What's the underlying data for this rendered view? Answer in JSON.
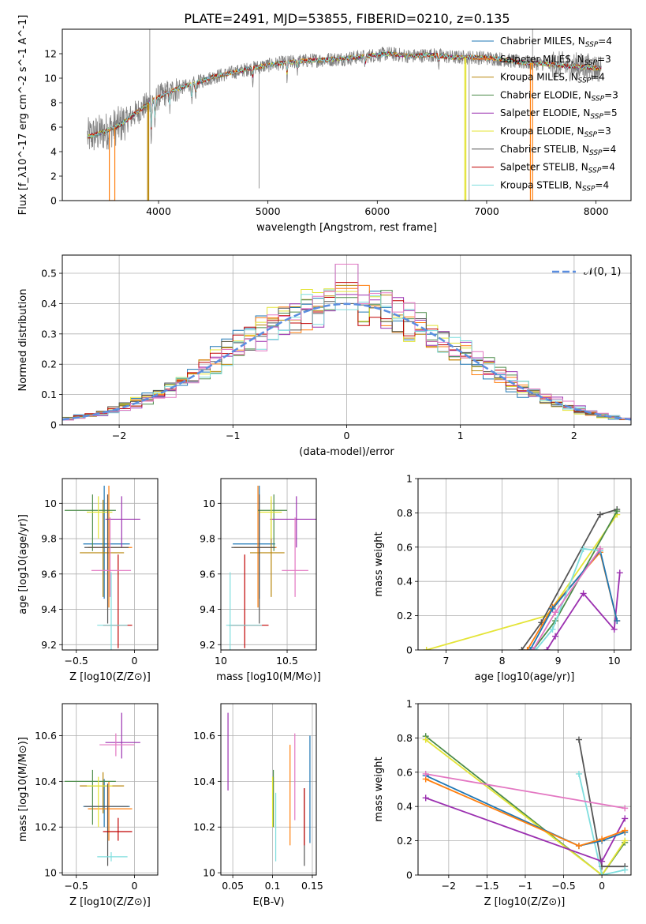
{
  "figure": {
    "title": "PLATE=2491, MJD=53855, FIBERID=0210, z=0.135"
  },
  "palette": {
    "Chabrier MILES": "#1f77b4",
    "Salpeter MILES": "#ff7f0e",
    "Kroupa MILES": "#b8860b",
    "Chabrier ELODIE": "#4c8c4a",
    "Salpeter ELODIE": "#9b30b0",
    "Kroupa ELODIE": "#e4e436",
    "Chabrier STELIB": "#555555",
    "Salpeter STELIB": "#c00000",
    "Kroupa STELIB": "#7fdede",
    "observed": "#808080",
    "normal_curve": "#5b8ee0"
  },
  "chart_data": [
    {
      "id": "spectrum",
      "type": "line",
      "title": "",
      "xlabel": "wavelength [Angstrom, rest frame]",
      "ylabel": "Flux [f_λ10^-17 erg cm^-2 s^-1 A^-1]",
      "xlim": [
        3120,
        8320
      ],
      "ylim": [
        0,
        14
      ],
      "xticks": [
        4000,
        5000,
        6000,
        7000,
        8000
      ],
      "yticks": [
        0,
        2,
        4,
        6,
        8,
        10,
        12
      ],
      "grid": false,
      "legend_position": "right",
      "legend": [
        {
          "model": "Chabrier MILES",
          "nssp": "4"
        },
        {
          "model": "Salpeter MILES",
          "nssp": "3"
        },
        {
          "model": "Kroupa MILES",
          "nssp": "4"
        },
        {
          "model": "Chabrier ELODIE",
          "nssp": "3"
        },
        {
          "model": "Salpeter ELODIE",
          "nssp": "5"
        },
        {
          "model": "Kroupa ELODIE",
          "nssp": "3"
        },
        {
          "model": "Chabrier STELIB",
          "nssp": "4"
        },
        {
          "model": "Salpeter STELIB",
          "nssp": "4"
        },
        {
          "model": "Kroupa STELIB",
          "nssp": "4"
        }
      ],
      "continuum": {
        "x": [
          3350,
          3500,
          3650,
          3800,
          3950,
          4100,
          4300,
          4500,
          4700,
          4900,
          5100,
          5300,
          5500,
          5700,
          5900,
          6100,
          6300,
          6500,
          6700,
          6900,
          7100,
          7300,
          7500,
          7700,
          7900,
          8050
        ],
        "y": [
          5.2,
          5.6,
          6.2,
          7.2,
          8.2,
          8.9,
          9.5,
          10.1,
          10.5,
          10.9,
          11.2,
          11.4,
          11.5,
          11.6,
          11.8,
          12.0,
          11.8,
          11.9,
          11.7,
          11.7,
          11.6,
          11.3,
          11.2,
          11.0,
          10.9,
          10.8
        ]
      },
      "dropouts": [
        {
          "model": "Salpeter MILES",
          "x": [
            3550,
            3600
          ]
        },
        {
          "model": "Kroupa MILES",
          "x": [
            3900,
            3910
          ]
        },
        {
          "model": "Kroupa ELODIE",
          "x": [
            6800,
            6810
          ]
        },
        {
          "model": "Salpeter MILES",
          "x": [
            7400,
            7420
          ]
        }
      ]
    },
    {
      "id": "residuals",
      "type": "area",
      "title": "",
      "xlabel": "(data-model)/error",
      "ylabel": "Normed distribution",
      "xlim": [
        -2.5,
        2.5
      ],
      "ylim": [
        0,
        0.56
      ],
      "xticks": [
        -2,
        -1,
        0,
        1,
        2
      ],
      "yticks": [
        0.0,
        0.1,
        0.2,
        0.3,
        0.4,
        0.5
      ],
      "grid": true,
      "legend_position": "top-right",
      "legend": [
        {
          "name": "𝒩(0, 1)"
        }
      ],
      "bin_width": 0.1,
      "peak_bins": [
        0.53,
        0.45,
        0.46,
        0.42,
        0.43,
        0.44,
        0.4,
        0.47,
        0.38
      ]
    },
    {
      "id": "z_vs_age",
      "type": "scatter",
      "xlabel": "Z [log10(Z/Z⊙)]",
      "ylabel": "age [log10(age/yr)]",
      "xlim": [
        -0.62,
        0.2
      ],
      "ylim": [
        9.17,
        10.14
      ],
      "xticks": [
        -0.5,
        0.0
      ],
      "yticks": [
        9.2,
        9.4,
        9.6,
        9.8,
        10.0
      ],
      "grid": true,
      "points": [
        {
          "model": "Chabrier MILES",
          "x": -0.26,
          "xerr": [
            0.18,
            0.22
          ],
          "y": 9.77,
          "yerr": [
            0.31,
            0.33
          ]
        },
        {
          "model": "Salpeter MILES",
          "x": -0.22,
          "xerr": [
            0.18,
            0.2
          ],
          "y": 9.75,
          "yerr": [
            0.34,
            0.35
          ]
        },
        {
          "model": "Kroupa MILES",
          "x": -0.27,
          "xerr": [
            0.2,
            0.18
          ],
          "y": 9.72,
          "yerr": [
            0.25,
            0.3
          ]
        },
        {
          "model": "Chabrier ELODIE",
          "x": -0.36,
          "xerr": [
            0.24,
            0.2
          ],
          "y": 9.96,
          "yerr": [
            0.23,
            0.09
          ]
        },
        {
          "model": "Salpeter ELODIE",
          "x": -0.11,
          "xerr": [
            0.14,
            0.16
          ],
          "y": 9.91,
          "yerr": [
            0.16,
            0.13
          ]
        },
        {
          "model": "Kroupa ELODIE",
          "x": -0.31,
          "xerr": [
            0.1,
            0.12
          ],
          "y": 9.95,
          "yerr": [
            0.15,
            0.09
          ]
        },
        {
          "model": "Chabrier STELIB",
          "x": -0.23,
          "xerr": [
            0.2,
            0.18
          ],
          "y": 9.75,
          "yerr": [
            0.43,
            0.3
          ]
        },
        {
          "model": "Salpeter STELIB",
          "x": -0.14,
          "xerr": [
            0.13,
            0.12
          ],
          "y": 9.31,
          "yerr": [
            0.13,
            0.4
          ]
        },
        {
          "model": "Kroupa STELIB",
          "x": -0.2,
          "xerr": [
            0.12,
            0.14
          ],
          "y": 9.31,
          "yerr": [
            0.14,
            0.3
          ]
        },
        {
          "model": "extra-pink",
          "x": -0.21,
          "xerr": [
            0.16,
            0.18
          ],
          "y": 9.62,
          "yerr": [
            0.15,
            0.3
          ]
        }
      ]
    },
    {
      "id": "mass_vs_age",
      "type": "scatter",
      "xlabel": "mass [log10(M/M⊙)]",
      "ylabel": "",
      "xlim": [
        10.0,
        10.72
      ],
      "ylim": [
        9.17,
        10.14
      ],
      "xticks": [
        10.0,
        10.5
      ],
      "yticks": [
        9.2,
        9.4,
        9.6,
        9.8,
        10.0
      ],
      "grid": true,
      "points": [
        {
          "model": "Chabrier MILES",
          "x": 10.29,
          "xerr": [
            0.2,
            0.12
          ],
          "y": 9.77,
          "yerr": [
            0.31,
            0.33
          ]
        },
        {
          "model": "Salpeter MILES",
          "x": 10.28,
          "xerr": [
            0.18,
            0.14
          ],
          "y": 9.75,
          "yerr": [
            0.34,
            0.35
          ]
        },
        {
          "model": "Kroupa MILES",
          "x": 10.38,
          "xerr": [
            0.16,
            0.1
          ],
          "y": 9.72,
          "yerr": [
            0.25,
            0.3
          ]
        },
        {
          "model": "Chabrier ELODIE",
          "x": 10.4,
          "xerr": [
            0.12,
            0.1
          ],
          "y": 9.96,
          "yerr": [
            0.23,
            0.09
          ]
        },
        {
          "model": "Salpeter ELODIE",
          "x": 10.57,
          "xerr": [
            0.2,
            0.2
          ],
          "y": 9.91,
          "yerr": [
            0.16,
            0.13
          ]
        },
        {
          "model": "Kroupa ELODIE",
          "x": 10.38,
          "xerr": [
            0.1,
            0.08
          ],
          "y": 9.95,
          "yerr": [
            0.15,
            0.09
          ]
        },
        {
          "model": "Chabrier STELIB",
          "x": 10.29,
          "xerr": [
            0.21,
            0.12
          ],
          "y": 9.75,
          "yerr": [
            0.43,
            0.3
          ]
        },
        {
          "model": "Salpeter STELIB",
          "x": 10.18,
          "xerr": [
            0.12,
            0.18
          ],
          "y": 9.31,
          "yerr": [
            0.13,
            0.4
          ]
        },
        {
          "model": "Kroupa STELIB",
          "x": 10.07,
          "xerr": [
            0.03,
            0.24
          ],
          "y": 9.31,
          "yerr": [
            0.14,
            0.3
          ]
        },
        {
          "model": "extra-pink",
          "x": 10.56,
          "xerr": [
            0.1,
            0.1
          ],
          "y": 9.62,
          "yerr": [
            0.15,
            0.3
          ]
        }
      ]
    },
    {
      "id": "age_weights",
      "type": "line",
      "xlabel": "age [log10(age/yr)]",
      "ylabel": "mass weight",
      "xlim": [
        6.5,
        10.3
      ],
      "ylim": [
        0,
        1.0
      ],
      "xticks": [
        7,
        8,
        9,
        10
      ],
      "yticks": [
        0.0,
        0.2,
        0.4,
        0.6,
        0.8,
        1.0
      ],
      "grid": true,
      "series": [
        {
          "model": "Kroupa ELODIE",
          "x": [
            6.65,
            8.8,
            10.05
          ],
          "y": [
            0.0,
            0.2,
            0.79
          ]
        },
        {
          "model": "Chabrier STELIB",
          "x": [
            8.35,
            8.7,
            9.75,
            10.05
          ],
          "y": [
            0.0,
            0.16,
            0.79,
            0.82
          ]
        },
        {
          "model": "Chabrier ELODIE",
          "x": [
            8.55,
            8.95,
            10.05
          ],
          "y": [
            0.0,
            0.17,
            0.81
          ]
        },
        {
          "model": "Salpeter ELODIE",
          "x": [
            8.8,
            8.95,
            9.45,
            10.0,
            10.1
          ],
          "y": [
            0.0,
            0.08,
            0.33,
            0.12,
            0.45
          ]
        },
        {
          "model": "Salpeter MILES",
          "x": [
            8.45,
            8.9,
            9.75,
            10.05
          ],
          "y": [
            0.0,
            0.25,
            0.57,
            0.17
          ]
        },
        {
          "model": "Chabrier MILES",
          "x": [
            8.5,
            8.9,
            9.75,
            10.05
          ],
          "y": [
            0.0,
            0.24,
            0.58,
            0.17
          ]
        },
        {
          "model": "Kroupa STELIB",
          "x": [
            8.6,
            8.9,
            9.45,
            9.75
          ],
          "y": [
            0.0,
            0.12,
            0.59,
            0.58
          ]
        },
        {
          "model": "extra-pink",
          "x": [
            8.55,
            8.95,
            9.75
          ],
          "y": [
            0.0,
            0.22,
            0.59
          ]
        }
      ]
    },
    {
      "id": "z_vs_mass",
      "type": "scatter",
      "xlabel": "Z [log10(Z/Z⊙)]",
      "ylabel": "mass [log10(M/M⊙)]",
      "xlim": [
        -0.62,
        0.2
      ],
      "ylim": [
        9.99,
        10.74
      ],
      "xticks": [
        -0.5,
        0.0
      ],
      "yticks": [
        10.0,
        10.2,
        10.4,
        10.6
      ],
      "grid": true,
      "points": [
        {
          "model": "Chabrier MILES",
          "x": -0.26,
          "xerr": [
            0.18,
            0.22
          ],
          "y": 10.29,
          "yerr": [
            0.09,
            0.12
          ]
        },
        {
          "model": "Salpeter MILES",
          "x": -0.22,
          "xerr": [
            0.18,
            0.2
          ],
          "y": 10.28,
          "yerr": [
            0.14,
            0.12
          ]
        },
        {
          "model": "Kroupa MILES",
          "x": -0.27,
          "xerr": [
            0.2,
            0.18
          ],
          "y": 10.38,
          "yerr": [
            0.12,
            0.06
          ]
        },
        {
          "model": "Chabrier ELODIE",
          "x": -0.36,
          "xerr": [
            0.24,
            0.2
          ],
          "y": 10.4,
          "yerr": [
            0.19,
            0.05
          ]
        },
        {
          "model": "Salpeter ELODIE",
          "x": -0.11,
          "xerr": [
            0.14,
            0.16
          ],
          "y": 10.57,
          "yerr": [
            0.07,
            0.13
          ]
        },
        {
          "model": "Kroupa ELODIE",
          "x": -0.31,
          "xerr": [
            0.1,
            0.12
          ],
          "y": 10.38,
          "yerr": [
            0.18,
            0.04
          ]
        },
        {
          "model": "Chabrier STELIB",
          "x": -0.23,
          "xerr": [
            0.2,
            0.18
          ],
          "y": 10.29,
          "yerr": [
            0.26,
            0.1
          ]
        },
        {
          "model": "Salpeter STELIB",
          "x": -0.14,
          "xerr": [
            0.13,
            0.12
          ],
          "y": 10.18,
          "yerr": [
            0.04,
            0.06
          ]
        },
        {
          "model": "Kroupa STELIB",
          "x": -0.2,
          "xerr": [
            0.12,
            0.14
          ],
          "y": 10.07,
          "yerr": [
            0.02,
            0.02
          ]
        },
        {
          "model": "extra-pink",
          "x": -0.16,
          "xerr": [
            0.14,
            0.16
          ],
          "y": 10.56,
          "yerr": [
            0.05,
            0.05
          ]
        }
      ]
    },
    {
      "id": "ebv_vs_mass",
      "type": "scatter",
      "xlabel": "E(B-V)",
      "ylabel": "",
      "xlim": [
        0.035,
        0.155
      ],
      "ylim": [
        9.99,
        10.74
      ],
      "xticks": [
        0.05,
        0.1,
        0.15
      ],
      "yticks": [
        10.0,
        10.2,
        10.4,
        10.6
      ],
      "grid": true,
      "points": [
        {
          "model": "Chabrier MILES",
          "x": 0.147,
          "xerr": [
            0,
            0
          ],
          "y": 10.37,
          "yerr": [
            0.24,
            0.23
          ]
        },
        {
          "model": "Salpeter MILES",
          "x": 0.122,
          "xerr": [
            0,
            0
          ],
          "y": 10.34,
          "yerr": [
            0.22,
            0.22
          ]
        },
        {
          "model": "Kroupa MILES",
          "x": 0.101,
          "xerr": [
            0,
            0
          ],
          "y": 10.3,
          "yerr": [
            0.1,
            0.12
          ]
        },
        {
          "model": "Chabrier ELODIE",
          "x": 0.101,
          "xerr": [
            0,
            0
          ],
          "y": 10.34,
          "yerr": [
            0.14,
            0.11
          ]
        },
        {
          "model": "Salpeter ELODIE",
          "x": 0.044,
          "xerr": [
            0,
            0
          ],
          "y": 10.53,
          "yerr": [
            0.17,
            0.17
          ]
        },
        {
          "model": "Kroupa ELODIE",
          "x": 0.1,
          "xerr": [
            0,
            0
          ],
          "y": 10.3,
          "yerr": [
            0.1,
            0.12
          ]
        },
        {
          "model": "Chabrier STELIB",
          "x": 0.14,
          "xerr": [
            0,
            0
          ],
          "y": 10.2,
          "yerr": [
            0.17,
            0.17
          ]
        },
        {
          "model": "Salpeter STELIB",
          "x": 0.14,
          "xerr": [
            0,
            0
          ],
          "y": 10.25,
          "yerr": [
            0.13,
            0.12
          ]
        },
        {
          "model": "Kroupa STELIB",
          "x": 0.104,
          "xerr": [
            0,
            0
          ],
          "y": 10.2,
          "yerr": [
            0.15,
            0.15
          ]
        },
        {
          "model": "extra-pink",
          "x": 0.128,
          "xerr": [
            0,
            0
          ],
          "y": 10.43,
          "yerr": [
            0.2,
            0.18
          ]
        }
      ]
    },
    {
      "id": "z_weights",
      "type": "line",
      "xlabel": "Z [log10(Z/Z⊙)]",
      "ylabel": "mass weight",
      "xlim": [
        -2.4,
        0.38
      ],
      "ylim": [
        0,
        1.0
      ],
      "xticks": [
        -2.0,
        -1.5,
        -1.0,
        -0.5,
        0.0
      ],
      "yticks": [
        0.0,
        0.2,
        0.4,
        0.6,
        0.8,
        1.0
      ],
      "grid": true,
      "series": [
        {
          "model": "Chabrier ELODIE",
          "x": [
            -2.3,
            0.0,
            0.3
          ],
          "y": [
            0.81,
            0.0,
            0.19
          ]
        },
        {
          "model": "Kroupa ELODIE",
          "x": [
            -2.3,
            0.0,
            0.3
          ],
          "y": [
            0.79,
            0.0,
            0.2
          ]
        },
        {
          "model": "Chabrier STELIB",
          "x": [
            -0.3,
            0.0,
            0.3
          ],
          "y": [
            0.79,
            0.05,
            0.05
          ]
        },
        {
          "model": "Kroupa STELIB",
          "x": [
            -0.3,
            0.0,
            0.3
          ],
          "y": [
            0.59,
            0.0,
            0.03
          ]
        },
        {
          "model": "Salpeter ELODIE",
          "x": [
            -2.3,
            0.0,
            0.3
          ],
          "y": [
            0.45,
            0.08,
            0.33
          ]
        },
        {
          "model": "Chabrier MILES",
          "x": [
            -2.3,
            -0.3,
            0.0,
            0.3
          ],
          "y": [
            0.58,
            0.17,
            0.2,
            0.25
          ]
        },
        {
          "model": "Salpeter MILES",
          "x": [
            -2.3,
            -0.3,
            0.0,
            0.3
          ],
          "y": [
            0.56,
            0.17,
            0.21,
            0.26
          ]
        },
        {
          "model": "extra-pink",
          "x": [
            -2.3,
            0.3
          ],
          "y": [
            0.59,
            0.39
          ]
        }
      ]
    }
  ]
}
